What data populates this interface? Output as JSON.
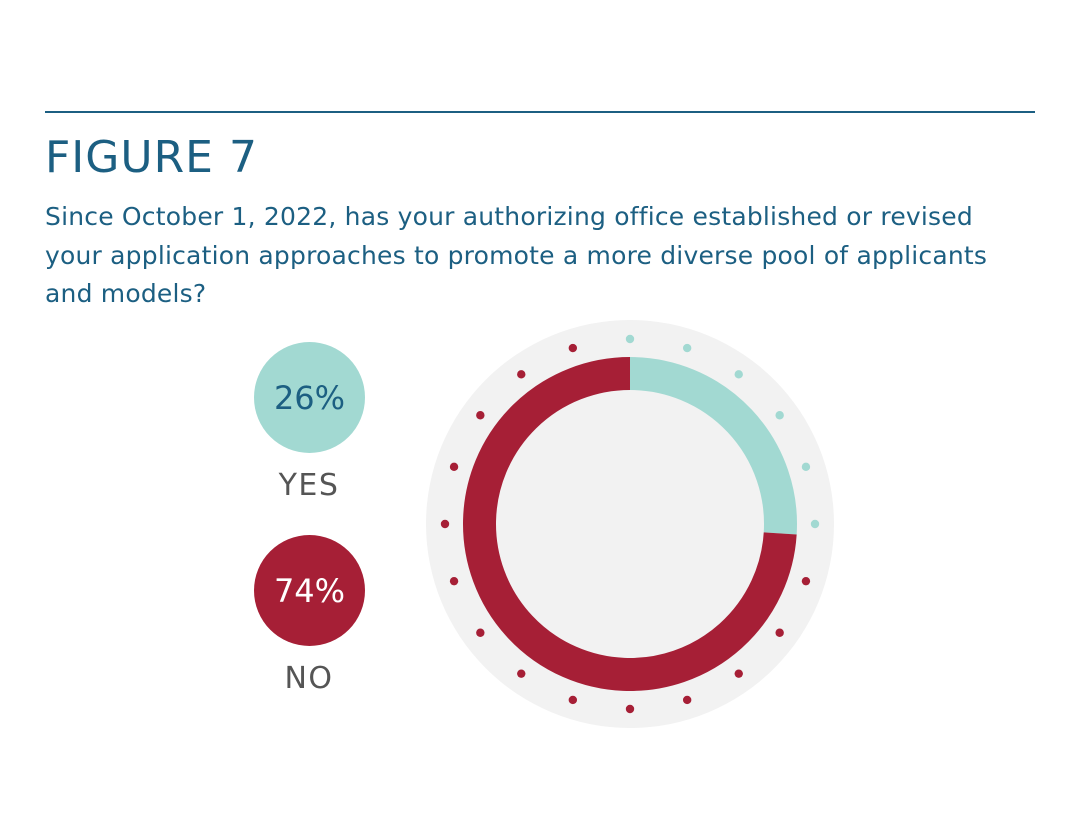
{
  "figure": {
    "title": "FIGURE 7",
    "subtitle": "Since October 1, 2022, has your authorizing office established or revised your application approaches to promote a more diverse pool of applicants and models?"
  },
  "chart_data": {
    "type": "pie",
    "title": "FIGURE 7",
    "subtitle": "Since October 1, 2022, has your authorizing office established or revised your application approaches to promote a more diverse pool of applicants and models?",
    "categories": [
      "YES",
      "NO"
    ],
    "values": [
      26,
      74
    ],
    "value_labels": [
      "26%",
      "74%"
    ],
    "colors": [
      "#a2d9d2",
      "#a61f36"
    ],
    "dots": {
      "total": 20,
      "yes_count": 6,
      "no_count": 14
    }
  },
  "legend": {
    "yes": {
      "value": "26%",
      "label": "YES",
      "color": "#a2d9d2",
      "text_color": "#1c5f82"
    },
    "no": {
      "value": "74%",
      "label": "NO",
      "color": "#a61f36",
      "text_color": "#ffffff"
    }
  },
  "colors": {
    "accent": "#1c5f82",
    "yes": "#a2d9d2",
    "no": "#a61f36",
    "backdrop": "#f2f2f2"
  }
}
